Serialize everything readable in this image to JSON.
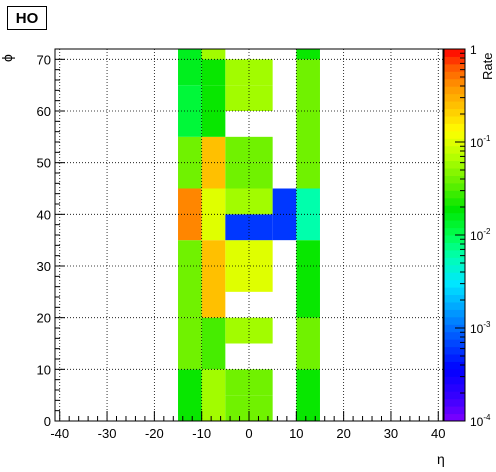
{
  "chart_data": {
    "type": "heatmap",
    "title": "HO",
    "xlabel": "η",
    "ylabel": "ϕ",
    "zlabel": "Rate",
    "xlim": [
      -41,
      41
    ],
    "ylim": [
      0,
      72
    ],
    "zlim": [
      0.0001,
      1
    ],
    "z_scale": "log",
    "grid": true,
    "x_ticks": [
      -40,
      -30,
      -20,
      -10,
      0,
      10,
      20,
      30,
      40
    ],
    "y_ticks": [
      0,
      10,
      20,
      30,
      40,
      50,
      60,
      70
    ],
    "z_ticks": [
      {
        "mantissa": "10",
        "exponent": "-4",
        "value": 0.0001
      },
      {
        "mantissa": "10",
        "exponent": "-3",
        "value": 0.001
      },
      {
        "mantissa": "10",
        "exponent": "-2",
        "value": 0.01
      },
      {
        "mantissa": "10",
        "exponent": "-1",
        "value": 0.1
      },
      {
        "mantissa": "1",
        "exponent": "",
        "value": 1
      }
    ],
    "cells": [
      {
        "x": [
          -15,
          -10
        ],
        "y": [
          0,
          10
        ],
        "z": 0.02
      },
      {
        "x": [
          -15,
          -10
        ],
        "y": [
          10,
          20
        ],
        "z": 0.04
      },
      {
        "x": [
          -15,
          -10
        ],
        "y": [
          20,
          30
        ],
        "z": 0.04
      },
      {
        "x": [
          -15,
          -10
        ],
        "y": [
          30,
          35
        ],
        "z": 0.04
      },
      {
        "x": [
          -15,
          -10
        ],
        "y": [
          35,
          45
        ],
        "z": 0.45
      },
      {
        "x": [
          -15,
          -10
        ],
        "y": [
          45,
          55
        ],
        "z": 0.04
      },
      {
        "x": [
          -15,
          -10
        ],
        "y": [
          55,
          65
        ],
        "z": 0.012
      },
      {
        "x": [
          -15,
          -10
        ],
        "y": [
          65,
          72
        ],
        "z": 0.015
      },
      {
        "x": [
          -10,
          -5
        ],
        "y": [
          0,
          10
        ],
        "z": 0.06
      },
      {
        "x": [
          -10,
          -5
        ],
        "y": [
          10,
          20
        ],
        "z": 0.03
      },
      {
        "x": [
          -10,
          -5
        ],
        "y": [
          20,
          30
        ],
        "z": 0.25
      },
      {
        "x": [
          -10,
          -5
        ],
        "y": [
          30,
          35
        ],
        "z": 0.25
      },
      {
        "x": [
          -10,
          -5
        ],
        "y": [
          35,
          45
        ],
        "z": 0.1
      },
      {
        "x": [
          -10,
          -5
        ],
        "y": [
          45,
          55
        ],
        "z": 0.25
      },
      {
        "x": [
          -10,
          -5
        ],
        "y": [
          55,
          65
        ],
        "z": 0.02
      },
      {
        "x": [
          -10,
          -5
        ],
        "y": [
          65,
          70
        ],
        "z": 0.02
      },
      {
        "x": [
          -10,
          -5
        ],
        "y": [
          70,
          72
        ],
        "z": 0.06
      },
      {
        "x": [
          -5,
          0
        ],
        "y": [
          0,
          5
        ],
        "z": 0.04
      },
      {
        "x": [
          -5,
          0
        ],
        "y": [
          5,
          10
        ],
        "z": 0.04
      },
      {
        "x": [
          -5,
          0
        ],
        "y": [
          15,
          20
        ],
        "z": 0.06
      },
      {
        "x": [
          -5,
          0
        ],
        "y": [
          25,
          30
        ],
        "z": 0.1
      },
      {
        "x": [
          -5,
          0
        ],
        "y": [
          30,
          35
        ],
        "z": 0.1
      },
      {
        "x": [
          -5,
          0
        ],
        "y": [
          35,
          40
        ],
        "z": 0.0006
      },
      {
        "x": [
          -5,
          0
        ],
        "y": [
          40,
          45
        ],
        "z": 0.06
      },
      {
        "x": [
          -5,
          0
        ],
        "y": [
          45,
          50
        ],
        "z": 0.04
      },
      {
        "x": [
          -5,
          0
        ],
        "y": [
          50,
          55
        ],
        "z": 0.04
      },
      {
        "x": [
          -5,
          0
        ],
        "y": [
          60,
          65
        ],
        "z": 0.06
      },
      {
        "x": [
          -5,
          0
        ],
        "y": [
          65,
          70
        ],
        "z": 0.06
      },
      {
        "x": [
          0,
          5
        ],
        "y": [
          0,
          5
        ],
        "z": 0.04
      },
      {
        "x": [
          0,
          5
        ],
        "y": [
          5,
          10
        ],
        "z": 0.04
      },
      {
        "x": [
          0,
          5
        ],
        "y": [
          15,
          20
        ],
        "z": 0.06
      },
      {
        "x": [
          0,
          5
        ],
        "y": [
          25,
          30
        ],
        "z": 0.1
      },
      {
        "x": [
          0,
          5
        ],
        "y": [
          30,
          35
        ],
        "z": 0.1
      },
      {
        "x": [
          0,
          5
        ],
        "y": [
          35,
          40
        ],
        "z": 0.0006
      },
      {
        "x": [
          0,
          5
        ],
        "y": [
          40,
          45
        ],
        "z": 0.06
      },
      {
        "x": [
          0,
          5
        ],
        "y": [
          45,
          50
        ],
        "z": 0.04
      },
      {
        "x": [
          0,
          5
        ],
        "y": [
          50,
          55
        ],
        "z": 0.04
      },
      {
        "x": [
          0,
          5
        ],
        "y": [
          60,
          65
        ],
        "z": 0.06
      },
      {
        "x": [
          0,
          5
        ],
        "y": [
          65,
          70
        ],
        "z": 0.06
      },
      {
        "x": [
          5,
          10
        ],
        "y": [
          35,
          45
        ],
        "z": 0.0006
      },
      {
        "x": [
          10,
          15
        ],
        "y": [
          0,
          10
        ],
        "z": 0.02
      },
      {
        "x": [
          10,
          15
        ],
        "y": [
          10,
          20
        ],
        "z": 0.04
      },
      {
        "x": [
          10,
          15
        ],
        "y": [
          20,
          35
        ],
        "z": 0.02
      },
      {
        "x": [
          10,
          15
        ],
        "y": [
          35,
          45
        ],
        "z": 0.006
      },
      {
        "x": [
          10,
          15
        ],
        "y": [
          45,
          70
        ],
        "z": 0.04
      },
      {
        "x": [
          10,
          15
        ],
        "y": [
          70,
          72
        ],
        "z": 0.02
      }
    ]
  }
}
